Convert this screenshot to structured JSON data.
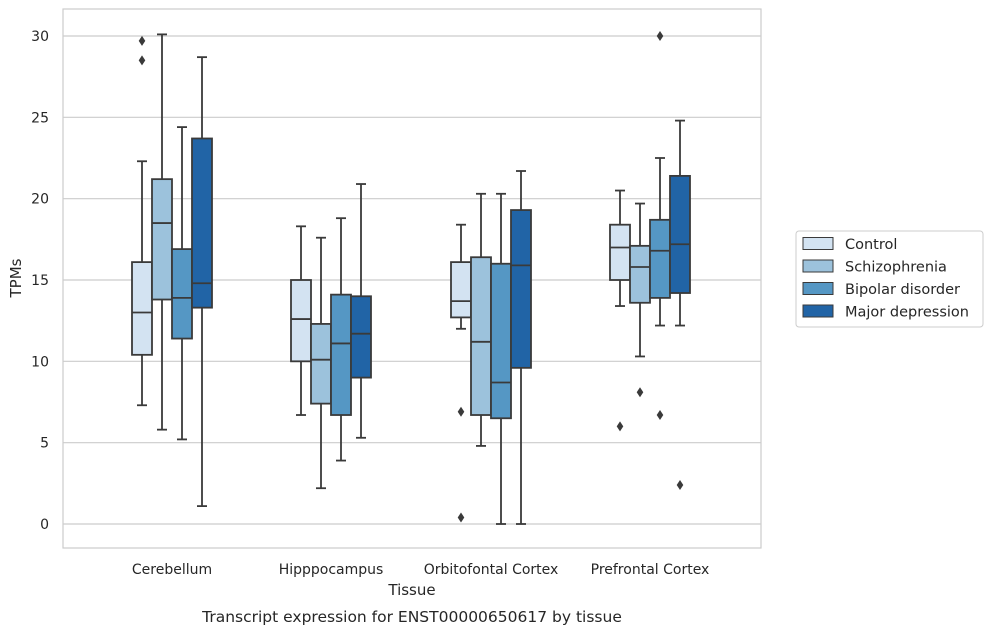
{
  "chart_data": {
    "type": "boxplot",
    "caption": "Transcript expression for ENST00000650617 by tissue",
    "xlabel": "Tissue",
    "ylabel": "TPMs",
    "ylim": [
      -1.4,
      31.6
    ],
    "yticks": [
      0,
      5,
      10,
      15,
      20,
      25,
      30
    ],
    "grid": "horizontal",
    "legend_position": "right",
    "categories": [
      "Cerebellum",
      "Hipppocampus",
      "Orbitofontal Cortex",
      "Prefrontal Cortex"
    ],
    "series": [
      {
        "name": "Control",
        "color": "#d3e3f2",
        "boxes": [
          {
            "whisker_low": 7.3,
            "q1": 10.4,
            "median": 13.0,
            "q3": 16.1,
            "whisker_high": 22.3,
            "outliers": [
              29.7,
              28.5
            ]
          },
          {
            "whisker_low": 6.7,
            "q1": 10.0,
            "median": 12.6,
            "q3": 15.0,
            "whisker_high": 18.3,
            "outliers": []
          },
          {
            "whisker_low": 12.0,
            "q1": 12.7,
            "median": 13.7,
            "q3": 16.1,
            "whisker_high": 18.4,
            "outliers": [
              6.9,
              0.4
            ]
          },
          {
            "whisker_low": 13.4,
            "q1": 15.0,
            "median": 17.0,
            "q3": 18.4,
            "whisker_high": 20.5,
            "outliers": [
              6.0
            ]
          }
        ]
      },
      {
        "name": "Schizophrenia",
        "color": "#9cc2dc",
        "boxes": [
          {
            "whisker_low": 5.8,
            "q1": 13.8,
            "median": 18.5,
            "q3": 21.2,
            "whisker_high": 30.1,
            "outliers": []
          },
          {
            "whisker_low": 2.2,
            "q1": 7.4,
            "median": 10.1,
            "q3": 12.3,
            "whisker_high": 17.6,
            "outliers": []
          },
          {
            "whisker_low": 4.8,
            "q1": 6.7,
            "median": 11.2,
            "q3": 16.4,
            "whisker_high": 20.3,
            "outliers": []
          },
          {
            "whisker_low": 10.3,
            "q1": 13.6,
            "median": 15.8,
            "q3": 17.1,
            "whisker_high": 19.7,
            "outliers": [
              8.1
            ]
          }
        ]
      },
      {
        "name": "Bipolar disorder",
        "color": "#5597c4",
        "boxes": [
          {
            "whisker_low": 5.2,
            "q1": 11.4,
            "median": 13.9,
            "q3": 16.9,
            "whisker_high": 24.4,
            "outliers": []
          },
          {
            "whisker_low": 3.9,
            "q1": 6.7,
            "median": 11.1,
            "q3": 14.1,
            "whisker_high": 18.8,
            "outliers": []
          },
          {
            "whisker_low": 0.0,
            "q1": 6.5,
            "median": 8.7,
            "q3": 16.0,
            "whisker_high": 20.3,
            "outliers": []
          },
          {
            "whisker_low": 12.2,
            "q1": 13.9,
            "median": 16.8,
            "q3": 18.7,
            "whisker_high": 22.5,
            "outliers": [
              6.7,
              30.0
            ]
          }
        ]
      },
      {
        "name": "Major depression",
        "color": "#2164a6",
        "boxes": [
          {
            "whisker_low": 1.1,
            "q1": 13.3,
            "median": 14.8,
            "q3": 23.7,
            "whisker_high": 28.7,
            "outliers": []
          },
          {
            "whisker_low": 5.3,
            "q1": 9.0,
            "median": 11.7,
            "q3": 14.0,
            "whisker_high": 20.9,
            "outliers": []
          },
          {
            "whisker_low": 0.0,
            "q1": 9.6,
            "median": 15.9,
            "q3": 19.3,
            "whisker_high": 21.7,
            "outliers": []
          },
          {
            "whisker_low": 12.2,
            "q1": 14.2,
            "median": 17.2,
            "q3": 21.4,
            "whisker_high": 24.8,
            "outliers": [
              2.4
            ]
          }
        ]
      }
    ]
  }
}
